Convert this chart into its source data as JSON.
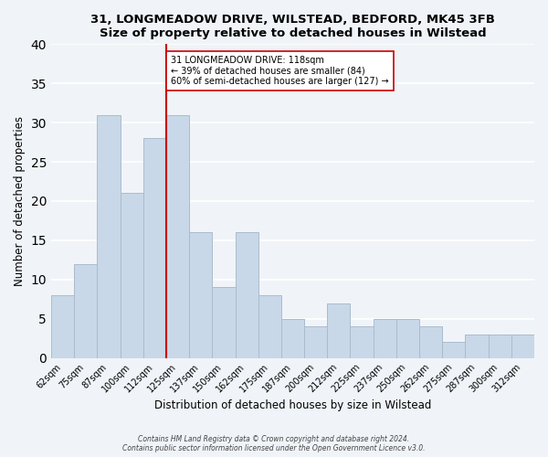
{
  "title": "31, LONGMEADOW DRIVE, WILSTEAD, BEDFORD, MK45 3FB",
  "subtitle": "Size of property relative to detached houses in Wilstead",
  "xlabel": "Distribution of detached houses by size in Wilstead",
  "ylabel": "Number of detached properties",
  "bar_labels": [
    "62sqm",
    "75sqm",
    "87sqm",
    "100sqm",
    "112sqm",
    "125sqm",
    "137sqm",
    "150sqm",
    "162sqm",
    "175sqm",
    "187sqm",
    "200sqm",
    "212sqm",
    "225sqm",
    "237sqm",
    "250sqm",
    "262sqm",
    "275sqm",
    "287sqm",
    "300sqm",
    "312sqm"
  ],
  "bar_heights": [
    8,
    12,
    31,
    21,
    28,
    31,
    16,
    9,
    16,
    8,
    5,
    4,
    7,
    4,
    5,
    5,
    4,
    2,
    3,
    3,
    3
  ],
  "bar_color": "#c8d8e8",
  "bar_edge_color": "#aabccc",
  "vline_color": "#cc0000",
  "ylim": [
    0,
    40
  ],
  "annotation_text": "31 LONGMEADOW DRIVE: 118sqm\n← 39% of detached houses are smaller (84)\n60% of semi-detached houses are larger (127) →",
  "annotation_box_color": "#ffffff",
  "annotation_box_edge": "#cc0000",
  "footer1": "Contains HM Land Registry data © Crown copyright and database right 2024.",
  "footer2": "Contains public sector information licensed under the Open Government Licence v3.0.",
  "background_color": "#f0f4f8"
}
